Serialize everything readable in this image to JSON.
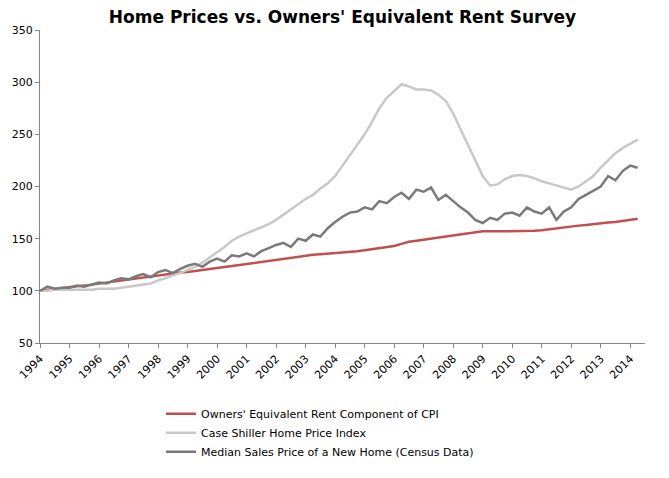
{
  "chart_data": {
    "type": "line",
    "title": "Home Prices vs. Owners' Equivalent Rent Survey",
    "x": [
      1994,
      1994.25,
      1994.5,
      1994.75,
      1995,
      1995.25,
      1995.5,
      1995.75,
      1996,
      1996.25,
      1996.5,
      1996.75,
      1997,
      1997.25,
      1997.5,
      1997.75,
      1998,
      1998.25,
      1998.5,
      1998.75,
      1999,
      1999.25,
      1999.5,
      1999.75,
      2000,
      2000.25,
      2000.5,
      2000.75,
      2001,
      2001.25,
      2001.5,
      2001.75,
      2002,
      2002.25,
      2002.5,
      2002.75,
      2003,
      2003.25,
      2003.5,
      2003.75,
      2004,
      2004.25,
      2004.5,
      2004.75,
      2005,
      2005.25,
      2005.5,
      2005.75,
      2006,
      2006.25,
      2006.5,
      2006.75,
      2007,
      2007.25,
      2007.5,
      2007.75,
      2008,
      2008.25,
      2008.5,
      2008.75,
      2009,
      2009.25,
      2009.5,
      2009.75,
      2010,
      2010.25,
      2010.5,
      2010.75,
      2011,
      2011.25,
      2011.5,
      2011.75,
      2012,
      2012.25,
      2012.5,
      2012.75,
      2013,
      2013.25,
      2013.5,
      2013.75,
      2014,
      2014.25
    ],
    "series": [
      {
        "name": "Owners' Equivalent Rent Component of CPI",
        "color": "#c0504d",
        "values": [
          100,
          101,
          102,
          103,
          104,
          104.5,
          105,
          106,
          107,
          108,
          109,
          110,
          111,
          112,
          113,
          114,
          115,
          116,
          117,
          117.5,
          118,
          119,
          120,
          121,
          122,
          123,
          124,
          125,
          126,
          127,
          128,
          129,
          130,
          131,
          132,
          133,
          134,
          134.5,
          135,
          135.5,
          136,
          137,
          137.5,
          138,
          139,
          140,
          141,
          142,
          143,
          145,
          147,
          148,
          149,
          150,
          151,
          152,
          153,
          154,
          155,
          156,
          157,
          157,
          157,
          157,
          157,
          157,
          157,
          157.5,
          158,
          159,
          160,
          161,
          162,
          162.5,
          163,
          164,
          165,
          165.5,
          166,
          167,
          168,
          169
        ]
      },
      {
        "name": "Case Shiller Home Price Index",
        "color": "#c8c8c8",
        "values": [
          100,
          100,
          101,
          101,
          101,
          101,
          101,
          101,
          102,
          102,
          102,
          103,
          104,
          105,
          106,
          107,
          110,
          112,
          115,
          117,
          120,
          123,
          127,
          132,
          137,
          142,
          148,
          152,
          155,
          158,
          161,
          164,
          168,
          173,
          178,
          183,
          188,
          192,
          198,
          203,
          210,
          220,
          230,
          240,
          250,
          262,
          275,
          285,
          292,
          298,
          296,
          293,
          293,
          292,
          288,
          282,
          270,
          255,
          240,
          225,
          210,
          201,
          202,
          207,
          210,
          211,
          210,
          208,
          205,
          203,
          201,
          199,
          197,
          200,
          205,
          210,
          218,
          225,
          232,
          237,
          241,
          245
        ]
      },
      {
        "name": "Median Sales Price of a New Home (Census Data)",
        "color": "#7a7a7a",
        "values": [
          100,
          104,
          102,
          103,
          103,
          105,
          104,
          106,
          108,
          107,
          110,
          112,
          111,
          114,
          116,
          113,
          118,
          120,
          117,
          121,
          124,
          126,
          123,
          128,
          131,
          128,
          134,
          133,
          136,
          133,
          138,
          141,
          144,
          146,
          142,
          150,
          148,
          154,
          152,
          160,
          166,
          171,
          175,
          176,
          180,
          178,
          186,
          184,
          190,
          194,
          188,
          197,
          195,
          199,
          187,
          192,
          186,
          180,
          175,
          168,
          165,
          170,
          168,
          174,
          175,
          172,
          180,
          176,
          174,
          180,
          168,
          176,
          180,
          188,
          192,
          196,
          200,
          210,
          206,
          215,
          220,
          218
        ]
      }
    ],
    "xlim": [
      1994,
      2014.5
    ],
    "xticks": [
      1994,
      1995,
      1996,
      1997,
      1998,
      1999,
      2000,
      2001,
      2002,
      2003,
      2004,
      2005,
      2006,
      2007,
      2008,
      2009,
      2010,
      2011,
      2012,
      2013,
      2014
    ],
    "ylim": [
      50,
      350
    ],
    "yticks": [
      50,
      100,
      150,
      200,
      250,
      300,
      350
    ],
    "grid": false,
    "legend": "bottom"
  }
}
